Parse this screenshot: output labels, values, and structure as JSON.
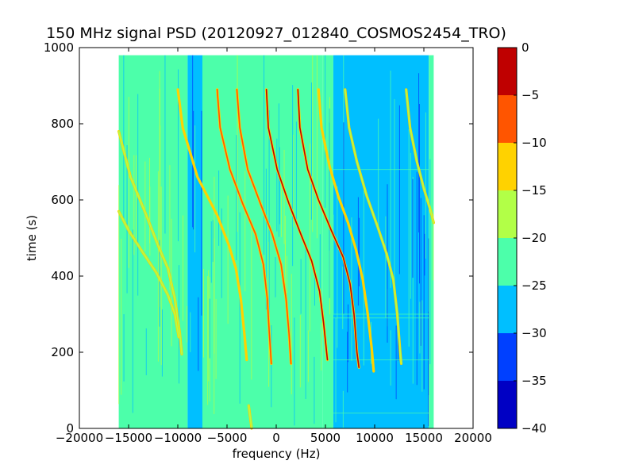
{
  "chart_data": {
    "type": "heatmap",
    "title": "150 MHz signal PSD (20120927_012840_COSMOS2454_TRO)",
    "xlabel": "frequency (Hz)",
    "ylabel": "time (s)",
    "xlim": [
      -20000,
      20000
    ],
    "ylim": [
      0,
      1000
    ],
    "x_ticks": [
      -20000,
      -15000,
      -10000,
      -5000,
      0,
      5000,
      10000,
      15000,
      20000
    ],
    "y_ticks": [
      0,
      200,
      400,
      600,
      800,
      1000
    ],
    "data_extent": {
      "x": [
        -16000,
        16000
      ],
      "y": [
        0,
        980
      ]
    },
    "background_regions": [
      {
        "x_from": -16000,
        "x_to": -9000,
        "level": -25
      },
      {
        "x_from": -9000,
        "x_to": -7500,
        "level": -27
      },
      {
        "x_from": -7500,
        "x_to": 4700,
        "level": -22
      },
      {
        "x_from": 4700,
        "x_to": 5800,
        "level": -23
      },
      {
        "x_from": 5800,
        "x_to": 15500,
        "level": -28
      },
      {
        "x_from": 15500,
        "x_to": 16000,
        "level": -24
      }
    ],
    "traces": [
      {
        "points": [
          [
            -16000,
            780
          ],
          [
            -14800,
            660
          ],
          [
            -13200,
            560
          ],
          [
            -12000,
            480
          ],
          [
            -11000,
            420
          ],
          [
            -10300,
            340
          ],
          [
            -9800,
            250
          ],
          [
            -9600,
            195
          ]
        ],
        "level": -18
      },
      {
        "points": [
          [
            -16000,
            570
          ],
          [
            -15000,
            520
          ],
          [
            -13500,
            460
          ],
          [
            -12200,
            410
          ],
          [
            -11000,
            350
          ],
          [
            -10300,
            300
          ],
          [
            -9900,
            240
          ]
        ],
        "level": -18
      },
      {
        "points": [
          [
            -10000,
            890
          ],
          [
            -9500,
            790
          ],
          [
            -8000,
            660
          ],
          [
            -6000,
            560
          ],
          [
            -4800,
            480
          ],
          [
            -4100,
            420
          ],
          [
            -3600,
            340
          ],
          [
            -3200,
            240
          ],
          [
            -3000,
            180
          ]
        ],
        "level": -15
      },
      {
        "points": [
          [
            -6000,
            890
          ],
          [
            -5700,
            790
          ],
          [
            -4700,
            680
          ],
          [
            -3400,
            590
          ],
          [
            -2100,
            510
          ],
          [
            -1300,
            430
          ],
          [
            -900,
            340
          ],
          [
            -700,
            250
          ],
          [
            -500,
            170
          ]
        ],
        "level": -8
      },
      {
        "points": [
          [
            -4000,
            890
          ],
          [
            -3700,
            790
          ],
          [
            -2900,
            680
          ],
          [
            -1600,
            590
          ],
          [
            -400,
            510
          ],
          [
            500,
            430
          ],
          [
            1000,
            340
          ],
          [
            1300,
            250
          ],
          [
            1500,
            170
          ]
        ],
        "level": -9
      },
      {
        "points": [
          [
            -1000,
            890
          ],
          [
            -800,
            790
          ],
          [
            100,
            680
          ],
          [
            1300,
            590
          ],
          [
            2500,
            510
          ],
          [
            3600,
            440
          ],
          [
            4400,
            360
          ],
          [
            4800,
            280
          ],
          [
            5200,
            180
          ]
        ],
        "level": -2
      },
      {
        "points": [
          [
            2200,
            890
          ],
          [
            2400,
            790
          ],
          [
            3200,
            680
          ],
          [
            4300,
            600
          ],
          [
            5600,
            520
          ],
          [
            6800,
            450
          ],
          [
            7500,
            380
          ],
          [
            7900,
            300
          ],
          [
            8200,
            200
          ],
          [
            8400,
            160
          ]
        ],
        "level": -4
      },
      {
        "points": [
          [
            4300,
            890
          ],
          [
            4600,
            790
          ],
          [
            5400,
            690
          ],
          [
            6300,
            610
          ],
          [
            7300,
            540
          ],
          [
            8100,
            470
          ],
          [
            8800,
            390
          ],
          [
            9300,
            300
          ],
          [
            9700,
            210
          ],
          [
            9900,
            150
          ]
        ],
        "level": -12
      },
      {
        "points": [
          [
            7000,
            890
          ],
          [
            7400,
            790
          ],
          [
            8200,
            700
          ],
          [
            9200,
            610
          ],
          [
            10300,
            530
          ],
          [
            11200,
            460
          ],
          [
            11900,
            390
          ],
          [
            12300,
            300
          ],
          [
            12600,
            200
          ],
          [
            12700,
            170
          ]
        ],
        "level": -16
      },
      {
        "points": [
          [
            13200,
            890
          ],
          [
            13600,
            790
          ],
          [
            14300,
            700
          ],
          [
            15000,
            630
          ],
          [
            15700,
            570
          ],
          [
            16000,
            540
          ]
        ],
        "level": -16
      },
      {
        "points": [
          [
            -2800,
            60
          ],
          [
            -2600,
            20
          ],
          [
            -2500,
            0
          ]
        ],
        "level": -18
      }
    ],
    "colorbar": {
      "ticks": [
        0,
        -5,
        -10,
        -15,
        -20,
        -25,
        -30,
        -35,
        -40
      ],
      "bands": [
        {
          "from": -5,
          "to": 0,
          "color": "#bf0000"
        },
        {
          "from": -10,
          "to": -5,
          "color": "#ff5500"
        },
        {
          "from": -15,
          "to": -10,
          "color": "#ffd200"
        },
        {
          "from": -20,
          "to": -15,
          "color": "#b2ff47"
        },
        {
          "from": -25,
          "to": -20,
          "color": "#4cffaa"
        },
        {
          "from": -30,
          "to": -25,
          "color": "#00bfff"
        },
        {
          "from": -35,
          "to": -30,
          "color": "#0040ff"
        },
        {
          "from": -40,
          "to": -35,
          "color": "#0000c4"
        }
      ]
    }
  }
}
